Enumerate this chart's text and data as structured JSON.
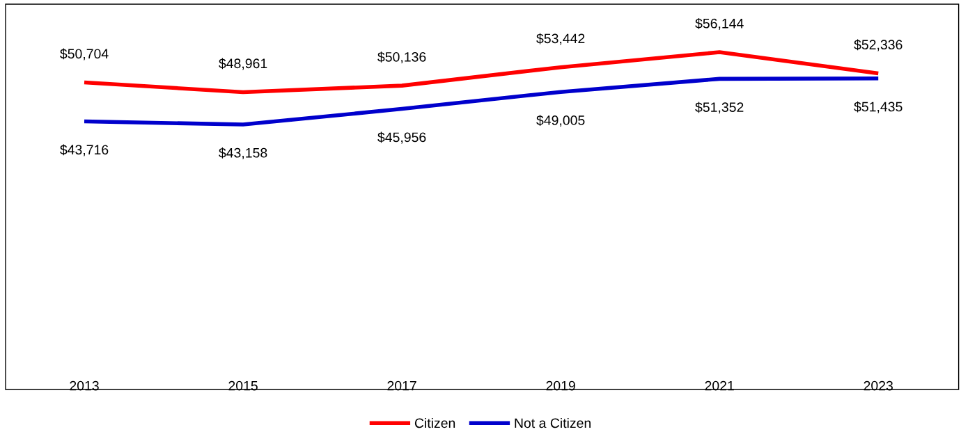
{
  "chart_data": {
    "type": "line",
    "categories": [
      "2013",
      "2015",
      "2017",
      "2019",
      "2021",
      "2023"
    ],
    "series": [
      {
        "name": "Citizen",
        "color": "#ff0000",
        "values": [
          50704,
          48961,
          50136,
          53442,
          56144,
          52336
        ],
        "value_labels": [
          "$50,704",
          "$48,961",
          "$50,136",
          "$53,442",
          "$56,144",
          "$52,336"
        ]
      },
      {
        "name": "Not a Citizen",
        "color": "#0000cc",
        "values": [
          43716,
          43158,
          45956,
          49005,
          51352,
          51435
        ],
        "value_labels": [
          "$43,716",
          "$43,158",
          "$45,956",
          "$49,005",
          "$51,352",
          "$51,435"
        ]
      }
    ],
    "tick_labels": "x",
    "grid": false,
    "legend": "bottom",
    "marker": "none",
    "line_style": "solid"
  }
}
